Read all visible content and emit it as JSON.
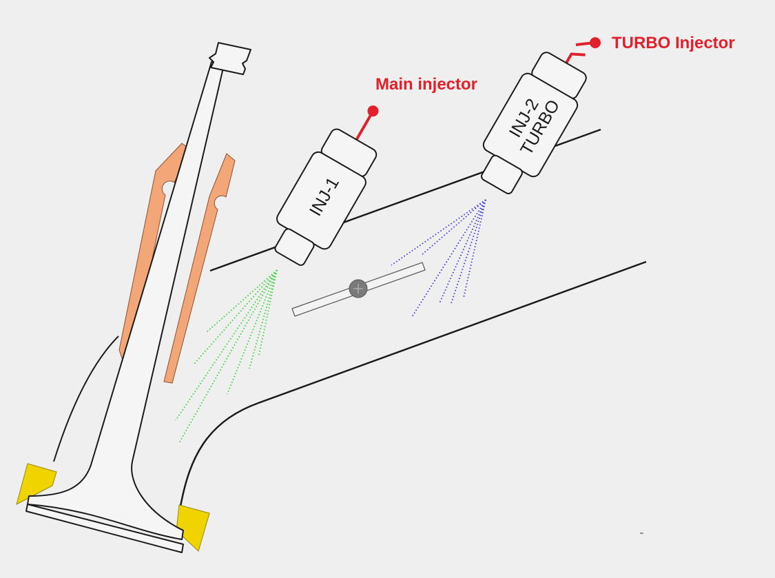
{
  "colors": {
    "background": "#efefef",
    "callout": "#e0202a",
    "outline": "#1a1a1a",
    "valve_guide": "#f3a678",
    "valve_seat": "#f0d400",
    "main_spray": "#36d336",
    "turbo_spray": "#3a3ae0",
    "throttle_pivot": "#7a7a7a"
  },
  "callouts": {
    "main": "Main injector",
    "turbo": "TURBO Injector"
  },
  "injectors": {
    "main": {
      "line1": "INJ-1"
    },
    "turbo": {
      "line1": "INJ-2",
      "line2": "TURBO"
    }
  }
}
